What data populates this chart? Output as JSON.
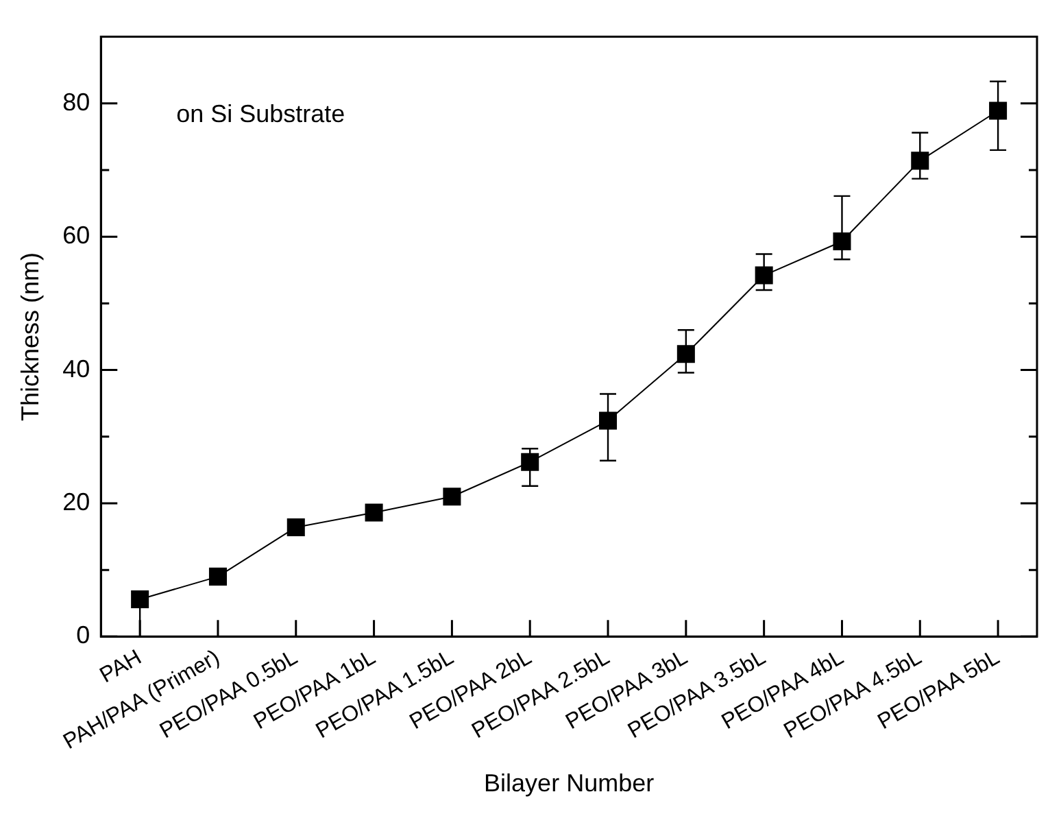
{
  "chart_data": {
    "type": "line",
    "xlabel": "Bilayer Number",
    "ylabel": "Thickness (nm)",
    "categories": [
      "PAH",
      "PAH/PAA (Primer)",
      "PEO/PAA 0.5bL",
      "PEO/PAA 1bL",
      "PEO/PAA 1.5bL",
      "PEO/PAA 2bL",
      "PEO/PAA 2.5bL",
      "PEO/PAA 3bL",
      "PEO/PAA 3.5bL",
      "PEO/PAA 4bL",
      "PEO/PAA 4.5bL",
      "PEO/PAA 5bL"
    ],
    "series": [
      {
        "color": "#000000",
        "values": [
          5.6,
          9.0,
          16.4,
          18.6,
          21.0,
          26.2,
          32.4,
          42.4,
          54.2,
          59.3,
          71.4,
          78.9
        ],
        "errors": [
          [
            0,
            5.6
          ],
          null,
          null,
          null,
          null,
          [
            22.6,
            28.2
          ],
          [
            26.4,
            36.4
          ],
          [
            39.6,
            46.0
          ],
          [
            52.0,
            57.4
          ],
          [
            56.6,
            66.1
          ],
          [
            68.7,
            75.6
          ],
          [
            73.0,
            83.3
          ]
        ]
      }
    ],
    "ylim": [
      0,
      90
    ],
    "yticks": [
      0,
      {
        "value": 10,
        "label": null
      },
      20,
      {
        "value": 30,
        "label": null
      },
      40,
      {
        "value": 50,
        "label": null
      },
      60,
      {
        "value": 70,
        "label": null
      },
      80
    ],
    "marker": "square",
    "line_style": "solid",
    "grid": false,
    "legend": false,
    "annotations": [
      "on Si Substrate"
    ]
  }
}
